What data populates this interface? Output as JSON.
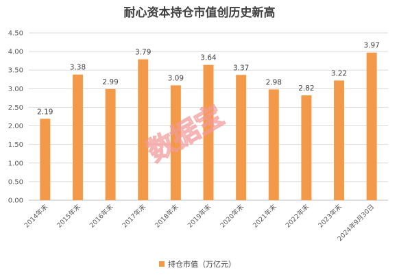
{
  "chart_data": {
    "type": "bar",
    "title": "耐心资本持仓市值创历史新高",
    "categories": [
      "2014年末",
      "2015年末",
      "2016年末",
      "2017年末",
      "2018年末",
      "2019年末",
      "2020年末",
      "2021年末",
      "2022年末",
      "2023年末",
      "2024年9月30日"
    ],
    "series": [
      {
        "name": "持仓市值（万亿元）",
        "values": [
          2.19,
          3.38,
          2.99,
          3.79,
          3.09,
          3.64,
          3.37,
          2.98,
          2.82,
          3.22,
          3.97
        ]
      }
    ],
    "value_labels": [
      "2.19",
      "3.38",
      "2.99",
      "3.79",
      "3.09",
      "3.64",
      "3.37",
      "2.98",
      "2.82",
      "3.22",
      "3.97"
    ],
    "y_ticks": [
      "0.00",
      "0.50",
      "1.00",
      "1.50",
      "2.00",
      "2.50",
      "3.00",
      "3.50",
      "4.00",
      "4.50"
    ],
    "ylim": [
      0,
      4.5
    ],
    "grid": true,
    "legend_position": "bottom",
    "bar_color": "#f39a4a",
    "watermark": "数据宝"
  }
}
